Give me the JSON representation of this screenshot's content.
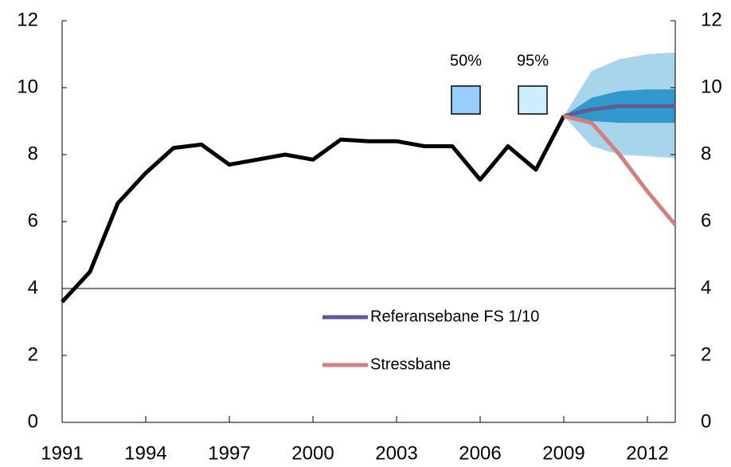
{
  "chart_data": {
    "type": "line",
    "x": [
      1991,
      1992,
      1993,
      1994,
      1995,
      1996,
      1997,
      1998,
      1999,
      2000,
      2001,
      2002,
      2003,
      2004,
      2005,
      2006,
      2007,
      2008,
      2009,
      2010,
      2011,
      2012,
      2013
    ],
    "series": [
      {
        "kind": "band",
        "name": "95%",
        "color": "#a8d4ec",
        "legend_color": "#cceeff",
        "values": [
          null,
          null,
          null,
          null,
          null,
          null,
          null,
          null,
          null,
          null,
          null,
          null,
          null,
          null,
          null,
          null,
          null,
          null,
          9.15,
          10.5,
          10.85,
          11.0,
          11.05
        ],
        "lower": [
          null,
          null,
          null,
          null,
          null,
          null,
          null,
          null,
          null,
          null,
          null,
          null,
          null,
          null,
          null,
          null,
          null,
          null,
          9.15,
          8.25,
          8.0,
          7.95,
          7.9
        ]
      },
      {
        "kind": "band",
        "name": "50%",
        "color": "#3399cc",
        "legend_color": "#99ccff",
        "values": [
          null,
          null,
          null,
          null,
          null,
          null,
          null,
          null,
          null,
          null,
          null,
          null,
          null,
          null,
          null,
          null,
          null,
          null,
          9.15,
          9.7,
          9.9,
          9.95,
          9.95
        ],
        "lower": [
          null,
          null,
          null,
          null,
          null,
          null,
          null,
          null,
          null,
          null,
          null,
          null,
          null,
          null,
          null,
          null,
          null,
          null,
          9.15,
          9.0,
          8.95,
          8.95,
          8.95
        ]
      },
      {
        "kind": "line",
        "color": "#000000",
        "values": [
          3.6,
          4.5,
          6.55,
          7.45,
          8.2,
          8.3,
          7.7,
          7.85,
          8.0,
          7.85,
          8.45,
          8.4,
          8.4,
          8.25,
          8.25,
          7.25,
          8.25,
          7.55,
          9.15,
          null,
          null,
          null,
          null
        ]
      },
      {
        "kind": "line",
        "name": "Referansebane FS 1/10",
        "color": "#5e5c96",
        "values": [
          null,
          null,
          null,
          null,
          null,
          null,
          null,
          null,
          null,
          null,
          null,
          null,
          null,
          null,
          null,
          null,
          null,
          null,
          9.15,
          9.35,
          9.45,
          9.45,
          9.45
        ]
      },
      {
        "kind": "line",
        "name": "Stressbane",
        "color": "#d08080",
        "values": [
          null,
          null,
          null,
          null,
          null,
          null,
          null,
          null,
          null,
          null,
          null,
          null,
          null,
          null,
          null,
          null,
          null,
          null,
          9.15,
          8.95,
          8.0,
          6.9,
          5.9
        ]
      }
    ],
    "xlim": [
      1991,
      2013
    ],
    "xticks": [
      1991,
      1994,
      1997,
      2000,
      2003,
      2006,
      2009,
      2012
    ],
    "ylim": [
      0,
      12
    ],
    "yticks": [
      0,
      2,
      4,
      6,
      8,
      10,
      12
    ],
    "y2lim": [
      0,
      12
    ],
    "y2ticks": [
      0,
      2,
      4,
      6,
      8,
      10,
      12
    ],
    "hline": 4
  }
}
